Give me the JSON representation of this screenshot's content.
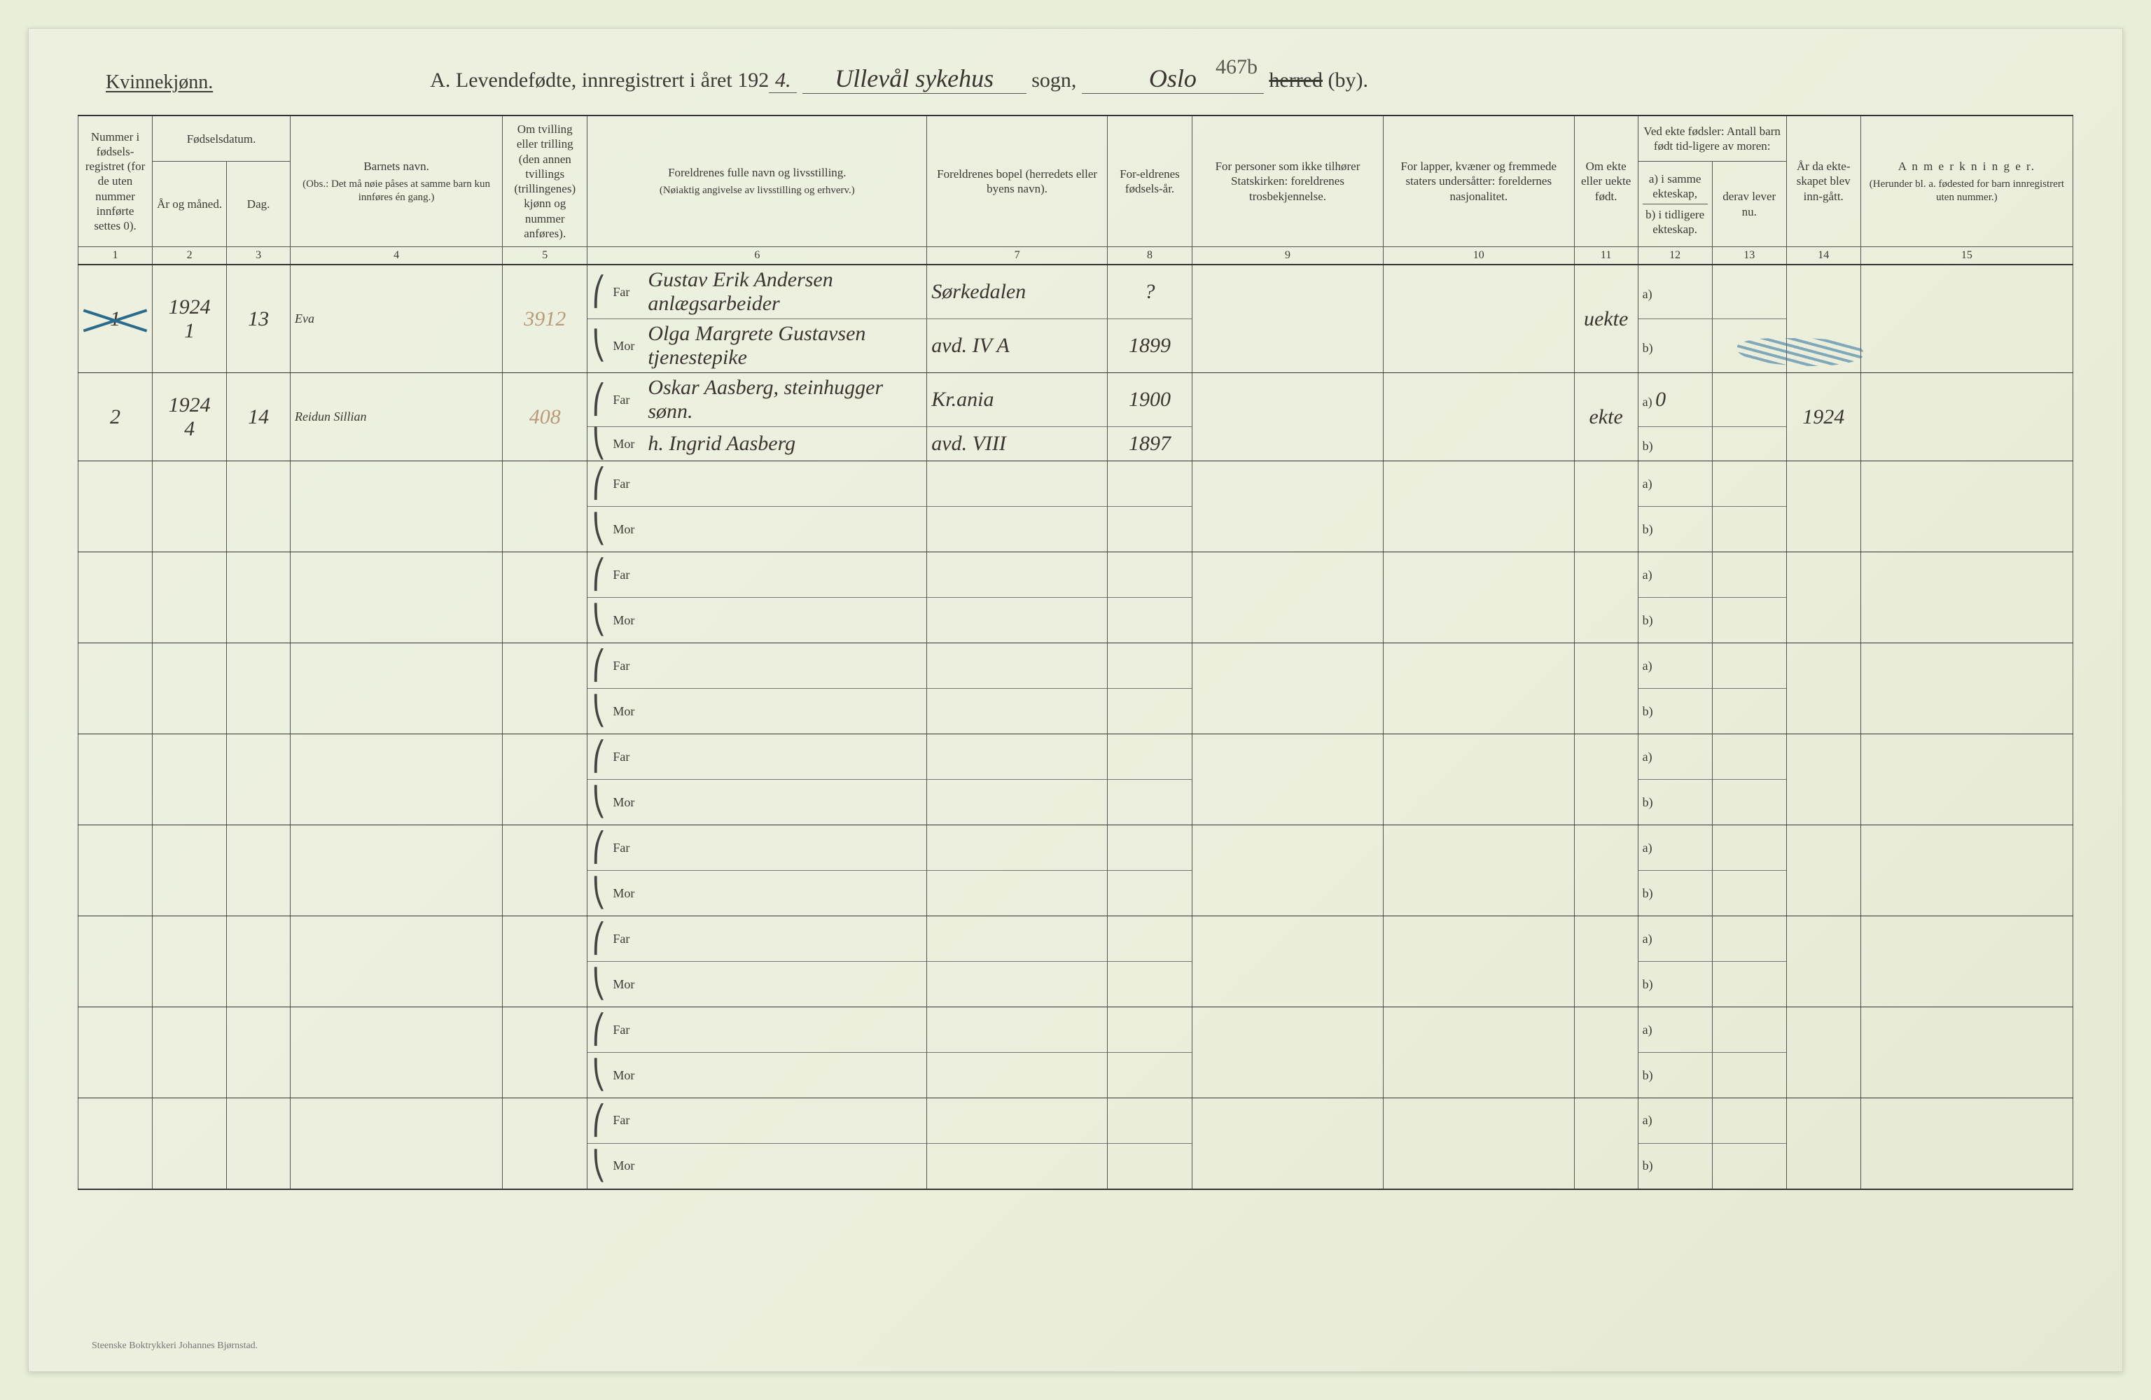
{
  "header": {
    "gender_label": "Kvinnekjønn.",
    "title_prefix": "A.  Levendefødte, innregistrert i året 192",
    "year_suffix": "4.",
    "sogn_label": "sogn,",
    "sogn_value": "Ullevål sykehus",
    "herred_label": "herred",
    "by_label": "(by).",
    "by_value": "Oslo",
    "page_annotation": "467b"
  },
  "columns": {
    "c1": "Nummer i fødsels-registret (for de uten nummer innførte settes 0).",
    "c2_group": "Fødselsdatum.",
    "c2": "År og måned.",
    "c3": "Dag.",
    "c4": "Barnets navn.",
    "c4_note": "(Obs.: Det må nøie påses at samme barn kun innføres én gang.)",
    "c5": "Om tvilling eller trilling (den annen tvillings (trillingenes) kjønn og nummer anføres).",
    "c6": "Foreldrenes fulle navn og livsstilling.",
    "c6_note": "(Nøiaktig angivelse av livsstilling og erhverv.)",
    "c7": "Foreldrenes bopel (herredets eller byens navn).",
    "c8": "For-eldrenes fødsels-år.",
    "c9": "For personer som ikke tilhører Statskirken: foreldrenes trosbekjennelse.",
    "c10": "For lapper, kvæner og fremmede staters undersåtter: foreldernes nasjonalitet.",
    "c11": "Om ekte eller uekte født.",
    "c12_group": "Ved ekte fødsler: Antall barn født tid-ligere av moren:",
    "c12": "a) i samme ekteskap,",
    "c12b": "b) i tidligere ekteskap.",
    "c13": "derav lever nu.",
    "c14": "År da ekte-skapet blev inn-gått.",
    "c15": "A n m e r k n i n g e r.",
    "c15_note": "(Herunder bl. a. fødested for barn innregistrert uten nummer.)",
    "far": "Far",
    "mor": "Mor",
    "a": "a)",
    "b": "b)"
  },
  "colnums": [
    "1",
    "2",
    "3",
    "4",
    "5",
    "6",
    "7",
    "8",
    "9",
    "10",
    "11",
    "12",
    "13",
    "14",
    "15"
  ],
  "rows": [
    {
      "num": "1",
      "year_month": "1924\n1",
      "day": "13",
      "name": "Eva",
      "twin": "3912",
      "far_name": "Gustav Erik Andersen anlægsarbeider",
      "mor_name": "Olga Margrete Gustavsen tjenestepike",
      "far_bopel": "Sørkedalen",
      "mor_bopel": "avd. IV A",
      "far_aar": "?",
      "mor_aar": "1899",
      "ekte": "uekte",
      "a_val": "",
      "b_val": "",
      "crossed": true
    },
    {
      "num": "2",
      "year_month": "1924\n4",
      "day": "14",
      "name": "Reidun Sillian",
      "twin": "408",
      "far_name": "Oskar Aasberg, steinhugger sønn.",
      "mor_name": "h. Ingrid Aasberg",
      "far_bopel": "Kr.ania",
      "mor_bopel": "avd. VIII",
      "far_aar": "1900",
      "mor_aar": "1897",
      "ekte": "ekte",
      "a_val": "0",
      "b_val": "",
      "ekt_aar": "1924",
      "crossed": false
    }
  ],
  "empty_rows": 8,
  "footer": "Steenske Boktrykkeri Johannes Bjørnstad.",
  "style": {
    "page_bg": "#ecefdd",
    "border_color": "#333333",
    "rule_color": "#555555",
    "handwriting_color": "#3a3530",
    "blue_pencil": "#2a6a8a",
    "header_fontsize": 28,
    "cell_fontsize": 18,
    "th_fontsize": 17,
    "handwritten_fontsize": 36
  }
}
